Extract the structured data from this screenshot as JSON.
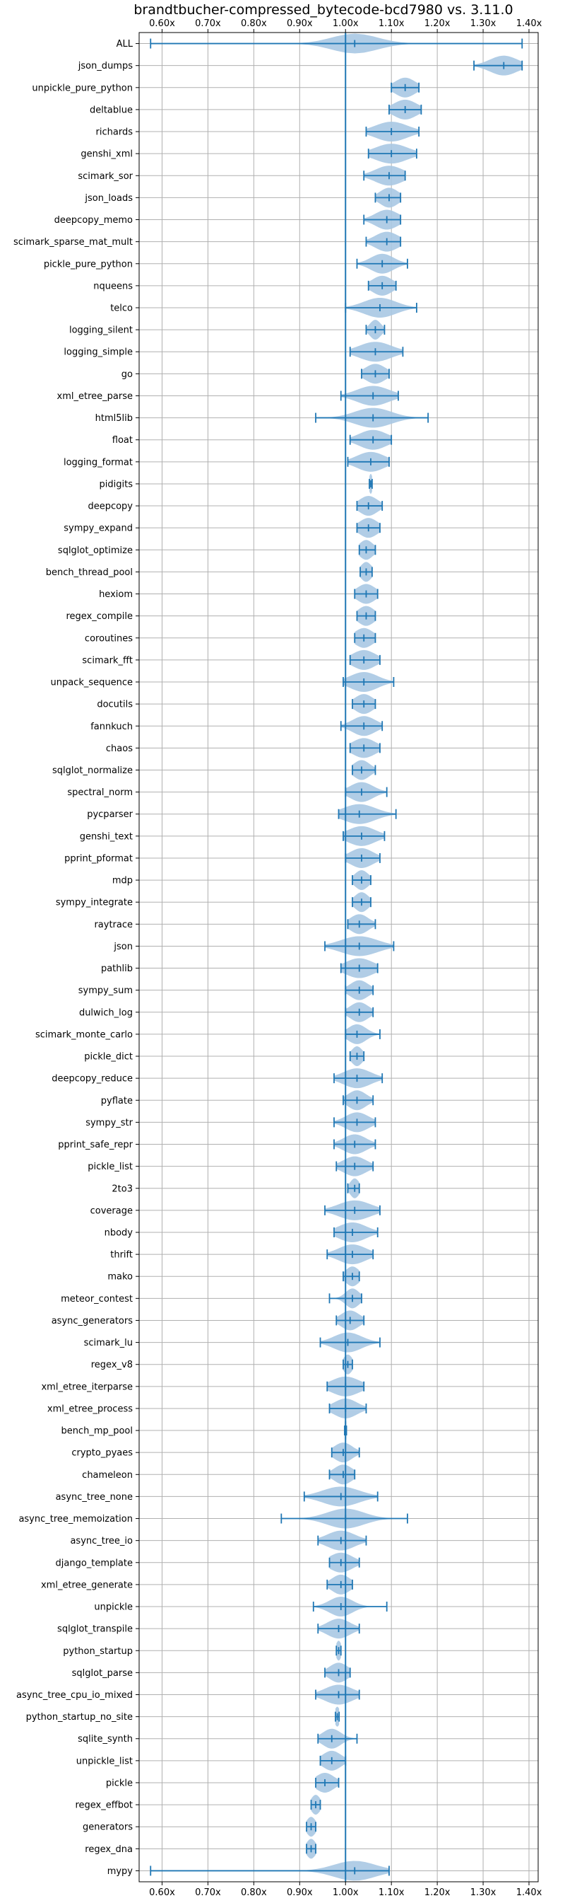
{
  "chart_data": {
    "type": "violin",
    "orientation": "horizontal",
    "title": "brandtbucher-compressed_bytecode-bcd7980 vs. 3.11.0",
    "xlabel": "",
    "ylabel": "",
    "xlim": [
      0.55,
      1.42
    ],
    "x_ticks": [
      0.6,
      0.7,
      0.8,
      0.9,
      1.0,
      1.1,
      1.2,
      1.3,
      1.4
    ],
    "x_tick_labels": [
      "0.60x",
      "0.70x",
      "0.80x",
      "0.90x",
      "1.00x",
      "1.10x",
      "1.20x",
      "1.30x",
      "1.40x"
    ],
    "reference_line": 1.0,
    "grid": true,
    "color": "#1f77b4",
    "fill_color": "#a9c8e3",
    "series": [
      {
        "name": "ALL",
        "min": 0.575,
        "mean": 1.02,
        "max": 1.385,
        "spread": 0.05
      },
      {
        "name": "json_dumps",
        "min": 1.28,
        "mean": 1.345,
        "max": 1.385,
        "spread": 0.03
      },
      {
        "name": "unpickle_pure_python",
        "min": 1.1,
        "mean": 1.13,
        "max": 1.16,
        "spread": 0.022
      },
      {
        "name": "deltablue",
        "min": 1.095,
        "mean": 1.13,
        "max": 1.165,
        "spread": 0.025
      },
      {
        "name": "richards",
        "min": 1.045,
        "mean": 1.1,
        "max": 1.16,
        "spread": 0.035
      },
      {
        "name": "genshi_xml",
        "min": 1.05,
        "mean": 1.1,
        "max": 1.155,
        "spread": 0.035
      },
      {
        "name": "scimark_sor",
        "min": 1.04,
        "mean": 1.095,
        "max": 1.13,
        "spread": 0.03
      },
      {
        "name": "json_loads",
        "min": 1.065,
        "mean": 1.095,
        "max": 1.12,
        "spread": 0.02
      },
      {
        "name": "deepcopy_memo",
        "min": 1.04,
        "mean": 1.09,
        "max": 1.12,
        "spread": 0.025
      },
      {
        "name": "scimark_sparse_mat_mult",
        "min": 1.045,
        "mean": 1.09,
        "max": 1.12,
        "spread": 0.025
      },
      {
        "name": "pickle_pure_python",
        "min": 1.025,
        "mean": 1.08,
        "max": 1.135,
        "spread": 0.025
      },
      {
        "name": "nqueens",
        "min": 1.05,
        "mean": 1.08,
        "max": 1.11,
        "spread": 0.022
      },
      {
        "name": "telco",
        "min": 1.0,
        "mean": 1.075,
        "max": 1.155,
        "spread": 0.035
      },
      {
        "name": "logging_silent",
        "min": 1.045,
        "mean": 1.065,
        "max": 1.085,
        "spread": 0.012
      },
      {
        "name": "logging_simple",
        "min": 1.01,
        "mean": 1.065,
        "max": 1.125,
        "spread": 0.035
      },
      {
        "name": "go",
        "min": 1.035,
        "mean": 1.065,
        "max": 1.095,
        "spread": 0.022
      },
      {
        "name": "xml_etree_parse",
        "min": 0.99,
        "mean": 1.06,
        "max": 1.115,
        "spread": 0.035
      },
      {
        "name": "html5lib",
        "min": 0.935,
        "mean": 1.06,
        "max": 1.18,
        "spread": 0.04
      },
      {
        "name": "float",
        "min": 1.01,
        "mean": 1.06,
        "max": 1.1,
        "spread": 0.03
      },
      {
        "name": "logging_format",
        "min": 1.005,
        "mean": 1.055,
        "max": 1.095,
        "spread": 0.03
      },
      {
        "name": "pidigits",
        "min": 1.052,
        "mean": 1.055,
        "max": 1.058,
        "spread": 0.004
      },
      {
        "name": "deepcopy",
        "min": 1.025,
        "mean": 1.05,
        "max": 1.08,
        "spread": 0.02
      },
      {
        "name": "sympy_expand",
        "min": 1.025,
        "mean": 1.05,
        "max": 1.075,
        "spread": 0.02
      },
      {
        "name": "sqlglot_optimize",
        "min": 1.03,
        "mean": 1.045,
        "max": 1.065,
        "spread": 0.015
      },
      {
        "name": "bench_thread_pool",
        "min": 1.032,
        "mean": 1.045,
        "max": 1.058,
        "spread": 0.012
      },
      {
        "name": "hexiom",
        "min": 1.02,
        "mean": 1.045,
        "max": 1.07,
        "spread": 0.02
      },
      {
        "name": "regex_compile",
        "min": 1.025,
        "mean": 1.045,
        "max": 1.065,
        "spread": 0.018
      },
      {
        "name": "coroutines",
        "min": 1.02,
        "mean": 1.04,
        "max": 1.065,
        "spread": 0.02
      },
      {
        "name": "scimark_fft",
        "min": 1.01,
        "mean": 1.04,
        "max": 1.075,
        "spread": 0.025
      },
      {
        "name": "unpack_sequence",
        "min": 0.995,
        "mean": 1.04,
        "max": 1.105,
        "spread": 0.03
      },
      {
        "name": "docutils",
        "min": 1.015,
        "mean": 1.04,
        "max": 1.065,
        "spread": 0.02
      },
      {
        "name": "fannkuch",
        "min": 0.99,
        "mean": 1.04,
        "max": 1.08,
        "spread": 0.025
      },
      {
        "name": "chaos",
        "min": 1.01,
        "mean": 1.04,
        "max": 1.075,
        "spread": 0.025
      },
      {
        "name": "sqlglot_normalize",
        "min": 1.015,
        "mean": 1.035,
        "max": 1.065,
        "spread": 0.018
      },
      {
        "name": "spectral_norm",
        "min": 1.0,
        "mean": 1.035,
        "max": 1.09,
        "spread": 0.025
      },
      {
        "name": "pycparser",
        "min": 0.985,
        "mean": 1.03,
        "max": 1.11,
        "spread": 0.035
      },
      {
        "name": "genshi_text",
        "min": 0.995,
        "mean": 1.035,
        "max": 1.085,
        "spread": 0.03
      },
      {
        "name": "pprint_pformat",
        "min": 1.0,
        "mean": 1.035,
        "max": 1.075,
        "spread": 0.025
      },
      {
        "name": "mdp",
        "min": 1.015,
        "mean": 1.035,
        "max": 1.055,
        "spread": 0.015
      },
      {
        "name": "sympy_integrate",
        "min": 1.015,
        "mean": 1.035,
        "max": 1.055,
        "spread": 0.015
      },
      {
        "name": "raytrace",
        "min": 1.005,
        "mean": 1.03,
        "max": 1.065,
        "spread": 0.02
      },
      {
        "name": "json",
        "min": 0.955,
        "mean": 1.03,
        "max": 1.105,
        "spread": 0.04
      },
      {
        "name": "pathlib",
        "min": 0.99,
        "mean": 1.03,
        "max": 1.07,
        "spread": 0.03
      },
      {
        "name": "sympy_sum",
        "min": 1.0,
        "mean": 1.03,
        "max": 1.06,
        "spread": 0.02
      },
      {
        "name": "dulwich_log",
        "min": 1.0,
        "mean": 1.03,
        "max": 1.06,
        "spread": 0.02
      },
      {
        "name": "scimark_monte_carlo",
        "min": 1.0,
        "mean": 1.025,
        "max": 1.075,
        "spread": 0.02
      },
      {
        "name": "pickle_dict",
        "min": 1.01,
        "mean": 1.025,
        "max": 1.04,
        "spread": 0.012
      },
      {
        "name": "deepcopy_reduce",
        "min": 0.975,
        "mean": 1.025,
        "max": 1.08,
        "spread": 0.03
      },
      {
        "name": "pyflate",
        "min": 0.995,
        "mean": 1.025,
        "max": 1.06,
        "spread": 0.02
      },
      {
        "name": "sympy_str",
        "min": 0.975,
        "mean": 1.025,
        "max": 1.065,
        "spread": 0.025
      },
      {
        "name": "pprint_safe_repr",
        "min": 0.975,
        "mean": 1.02,
        "max": 1.065,
        "spread": 0.025
      },
      {
        "name": "pickle_list",
        "min": 0.98,
        "mean": 1.02,
        "max": 1.06,
        "spread": 0.025
      },
      {
        "name": "2to3",
        "min": 1.005,
        "mean": 1.02,
        "max": 1.03,
        "spread": 0.01
      },
      {
        "name": "coverage",
        "min": 0.955,
        "mean": 1.02,
        "max": 1.075,
        "spread": 0.035
      },
      {
        "name": "nbody",
        "min": 0.975,
        "mean": 1.015,
        "max": 1.07,
        "spread": 0.03
      },
      {
        "name": "thrift",
        "min": 0.96,
        "mean": 1.015,
        "max": 1.06,
        "spread": 0.03
      },
      {
        "name": "mako",
        "min": 0.995,
        "mean": 1.015,
        "max": 1.03,
        "spread": 0.015
      },
      {
        "name": "meteor_contest",
        "min": 0.965,
        "mean": 1.015,
        "max": 1.035,
        "spread": 0.015
      },
      {
        "name": "async_generators",
        "min": 0.98,
        "mean": 1.01,
        "max": 1.04,
        "spread": 0.02
      },
      {
        "name": "scimark_lu",
        "min": 0.945,
        "mean": 1.005,
        "max": 1.075,
        "spread": 0.03
      },
      {
        "name": "regex_v8",
        "min": 0.995,
        "mean": 1.005,
        "max": 1.015,
        "spread": 0.01
      },
      {
        "name": "xml_etree_iterparse",
        "min": 0.96,
        "mean": 1.0,
        "max": 1.04,
        "spread": 0.03
      },
      {
        "name": "xml_etree_process",
        "min": 0.965,
        "mean": 1.0,
        "max": 1.045,
        "spread": 0.025
      },
      {
        "name": "bench_mp_pool",
        "min": 0.998,
        "mean": 1.0,
        "max": 1.002,
        "spread": 0.004
      },
      {
        "name": "crypto_pyaes",
        "min": 0.97,
        "mean": 0.995,
        "max": 1.03,
        "spread": 0.02
      },
      {
        "name": "chameleon",
        "min": 0.965,
        "mean": 0.995,
        "max": 1.02,
        "spread": 0.02
      },
      {
        "name": "async_tree_none",
        "min": 0.91,
        "mean": 0.99,
        "max": 1.07,
        "spread": 0.04
      },
      {
        "name": "async_tree_memoization",
        "min": 0.86,
        "mean": 1.0,
        "max": 1.135,
        "spread": 0.04
      },
      {
        "name": "async_tree_io",
        "min": 0.94,
        "mean": 0.99,
        "max": 1.045,
        "spread": 0.03
      },
      {
        "name": "django_template",
        "min": 0.965,
        "mean": 0.99,
        "max": 1.03,
        "spread": 0.025
      },
      {
        "name": "xml_etree_generate",
        "min": 0.96,
        "mean": 0.99,
        "max": 1.015,
        "spread": 0.02
      },
      {
        "name": "unpickle",
        "min": 0.93,
        "mean": 0.99,
        "max": 1.09,
        "spread": 0.025
      },
      {
        "name": "sqlglot_transpile",
        "min": 0.94,
        "mean": 0.985,
        "max": 1.03,
        "spread": 0.025
      },
      {
        "name": "python_startup",
        "min": 0.98,
        "mean": 0.985,
        "max": 0.99,
        "spread": 0.006
      },
      {
        "name": "sqlglot_parse",
        "min": 0.955,
        "mean": 0.985,
        "max": 1.01,
        "spread": 0.02
      },
      {
        "name": "async_tree_cpu_io_mixed",
        "min": 0.935,
        "mean": 0.985,
        "max": 1.03,
        "spread": 0.03
      },
      {
        "name": "python_startup_no_site",
        "min": 0.978,
        "mean": 0.982,
        "max": 0.986,
        "spread": 0.006
      },
      {
        "name": "sqlite_synth",
        "min": 0.94,
        "mean": 0.97,
        "max": 1.025,
        "spread": 0.02
      },
      {
        "name": "unpickle_list",
        "min": 0.945,
        "mean": 0.97,
        "max": 1.0,
        "spread": 0.02
      },
      {
        "name": "pickle",
        "min": 0.935,
        "mean": 0.955,
        "max": 0.985,
        "spread": 0.02
      },
      {
        "name": "regex_effbot",
        "min": 0.925,
        "mean": 0.935,
        "max": 0.945,
        "spread": 0.01
      },
      {
        "name": "generators",
        "min": 0.915,
        "mean": 0.925,
        "max": 0.935,
        "spread": 0.01
      },
      {
        "name": "regex_dna",
        "min": 0.915,
        "mean": 0.925,
        "max": 0.935,
        "spread": 0.01
      },
      {
        "name": "mypy",
        "min": 0.575,
        "mean": 1.02,
        "max": 1.095,
        "spread": 0.045
      }
    ]
  }
}
